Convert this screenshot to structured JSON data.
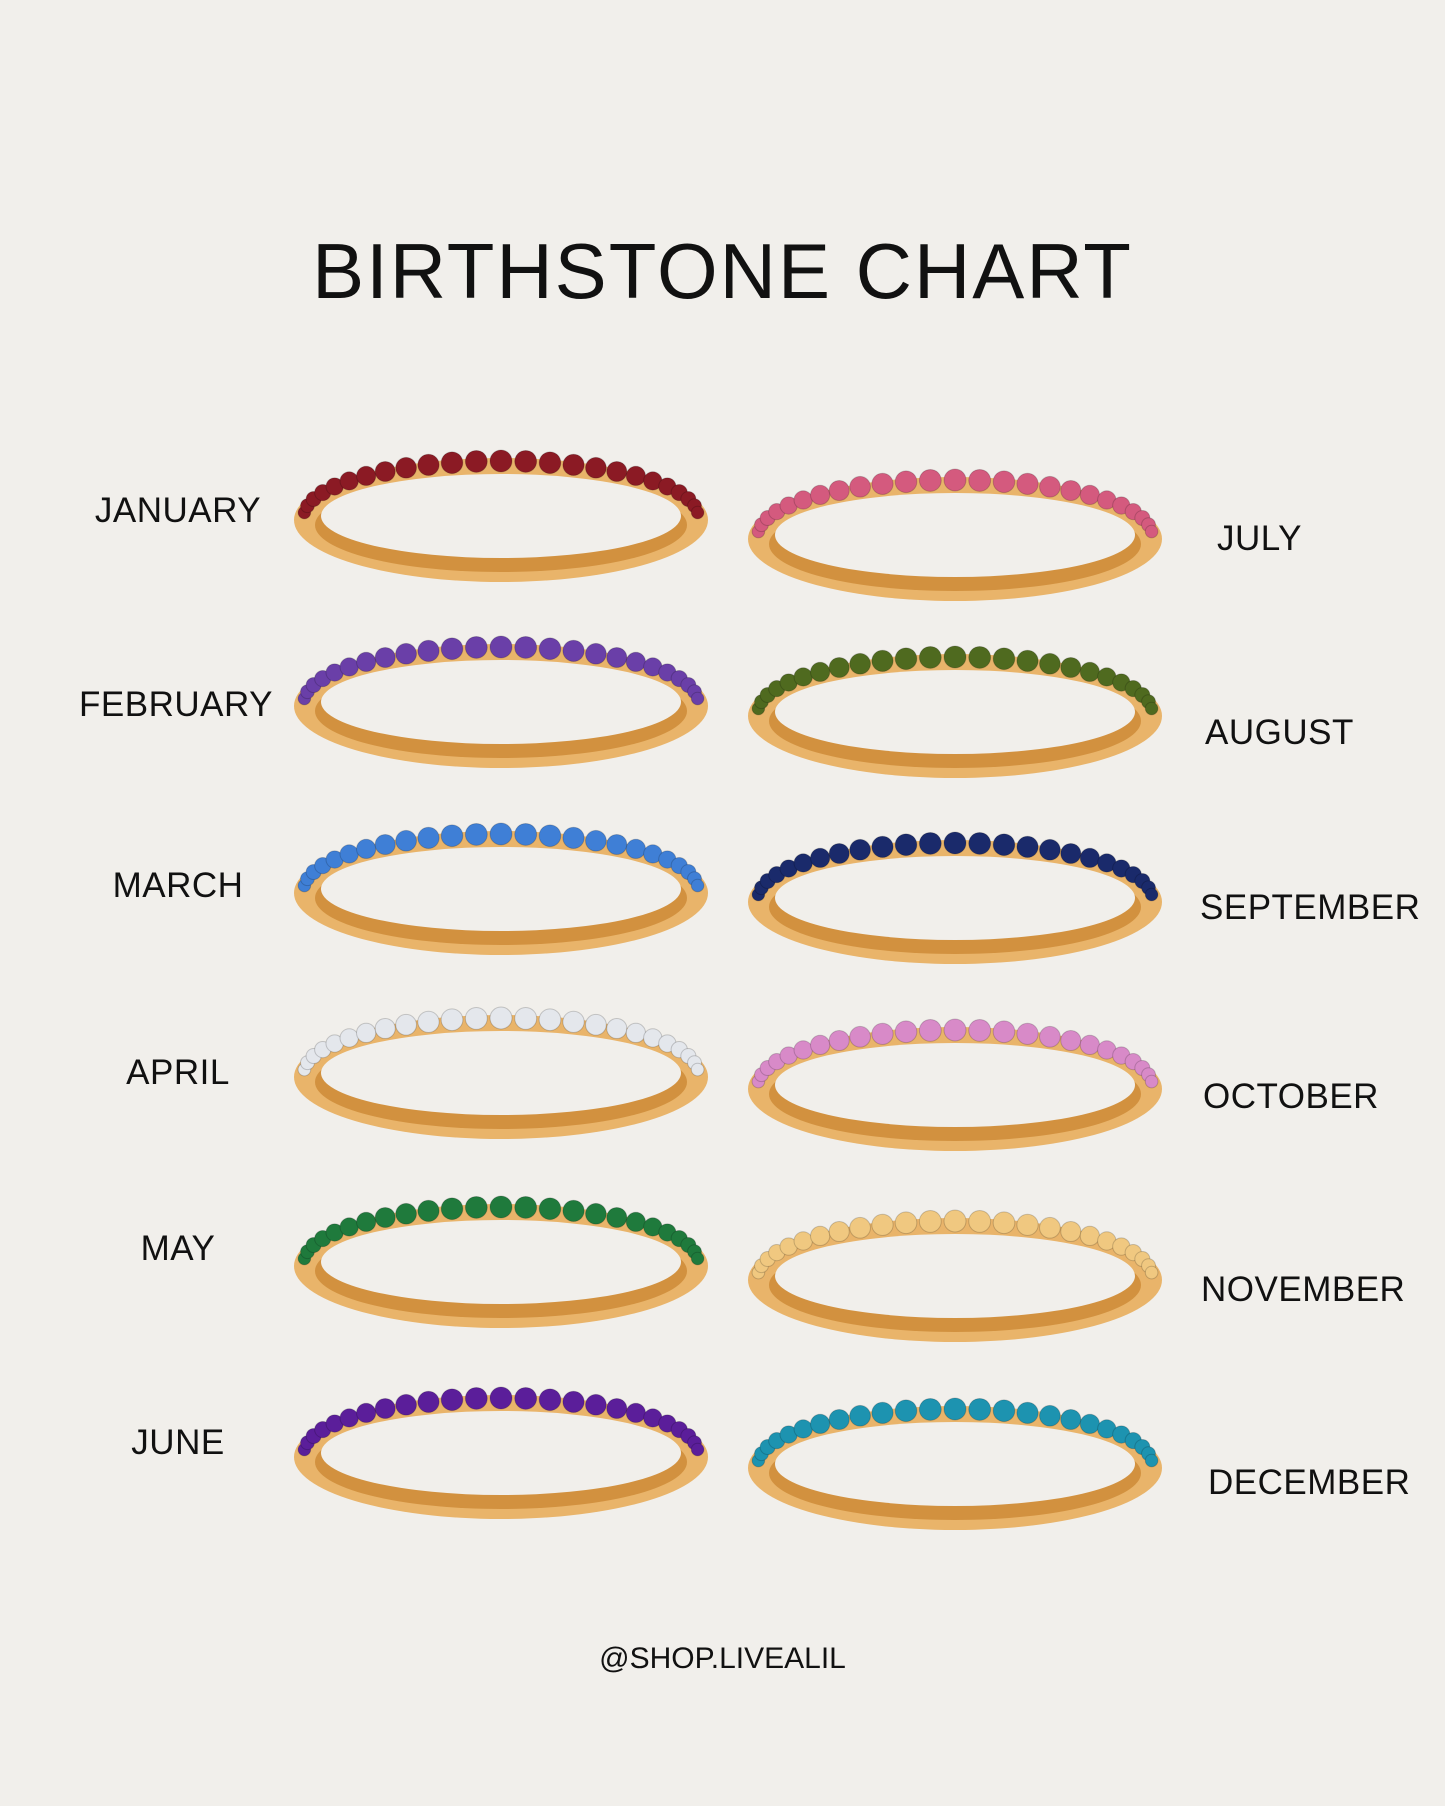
{
  "title": "BIRTHSTONE CHART",
  "footer": "@SHOP.LIVEALIL",
  "months": [
    {
      "name": "JANUARY",
      "stone_color": "#8b1a24"
    },
    {
      "name": "FEBRUARY",
      "stone_color": "#6a3fa8"
    },
    {
      "name": "MARCH",
      "stone_color": "#3f7fd6"
    },
    {
      "name": "APRIL",
      "stone_color": "#e4e7ec"
    },
    {
      "name": "MAY",
      "stone_color": "#1f7a3c"
    },
    {
      "name": "JUNE",
      "stone_color": "#5b1e9a"
    },
    {
      "name": "JULY",
      "stone_color": "#d45a7e"
    },
    {
      "name": "AUGUST",
      "stone_color": "#4f6a1f"
    },
    {
      "name": "SEPTEMBER",
      "stone_color": "#1a2a6b"
    },
    {
      "name": "OCTOBER",
      "stone_color": "#d88ac8"
    },
    {
      "name": "NOVEMBER",
      "stone_color": "#f0c880"
    },
    {
      "name": "DECEMBER",
      "stone_color": "#1d93b0"
    }
  ],
  "band_color": "#e9b46a"
}
